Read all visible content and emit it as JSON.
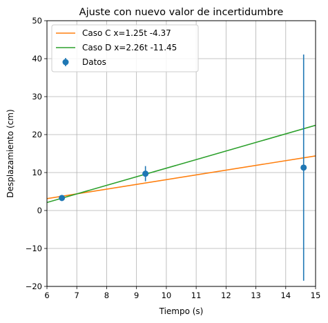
{
  "chart_data": {
    "type": "scatter",
    "title": "Ajuste con nuevo valor de incertidumbre",
    "xlabel": "Tiempo (s)",
    "ylabel": "Desplazamiento (cm)",
    "xlim": [
      6,
      15
    ],
    "ylim": [
      -20,
      50
    ],
    "xticks": [
      6,
      7,
      8,
      9,
      10,
      11,
      12,
      13,
      14,
      15
    ],
    "yticks": [
      -20,
      -10,
      0,
      10,
      20,
      30,
      40,
      50
    ],
    "grid": true,
    "legend_position": "top-left",
    "series": [
      {
        "name": "Caso C x=1.25t -4.37",
        "kind": "line",
        "color": "#ff7f0e",
        "slope": 1.25,
        "intercept": -4.37,
        "x": [
          6,
          15
        ],
        "y": [
          3.13,
          14.38
        ]
      },
      {
        "name": "Caso D x=2.26t -11.45",
        "kind": "line",
        "color": "#2ca02c",
        "slope": 2.26,
        "intercept": -11.45,
        "x": [
          6,
          15
        ],
        "y": [
          2.11,
          22.45
        ]
      },
      {
        "name": "Datos",
        "kind": "errorbar",
        "color": "#1f77b4",
        "x": [
          6.5,
          9.3,
          14.6
        ],
        "y": [
          3.3,
          9.7,
          11.3
        ],
        "yerr": [
          0.8,
          2.0,
          29.8
        ]
      }
    ]
  }
}
